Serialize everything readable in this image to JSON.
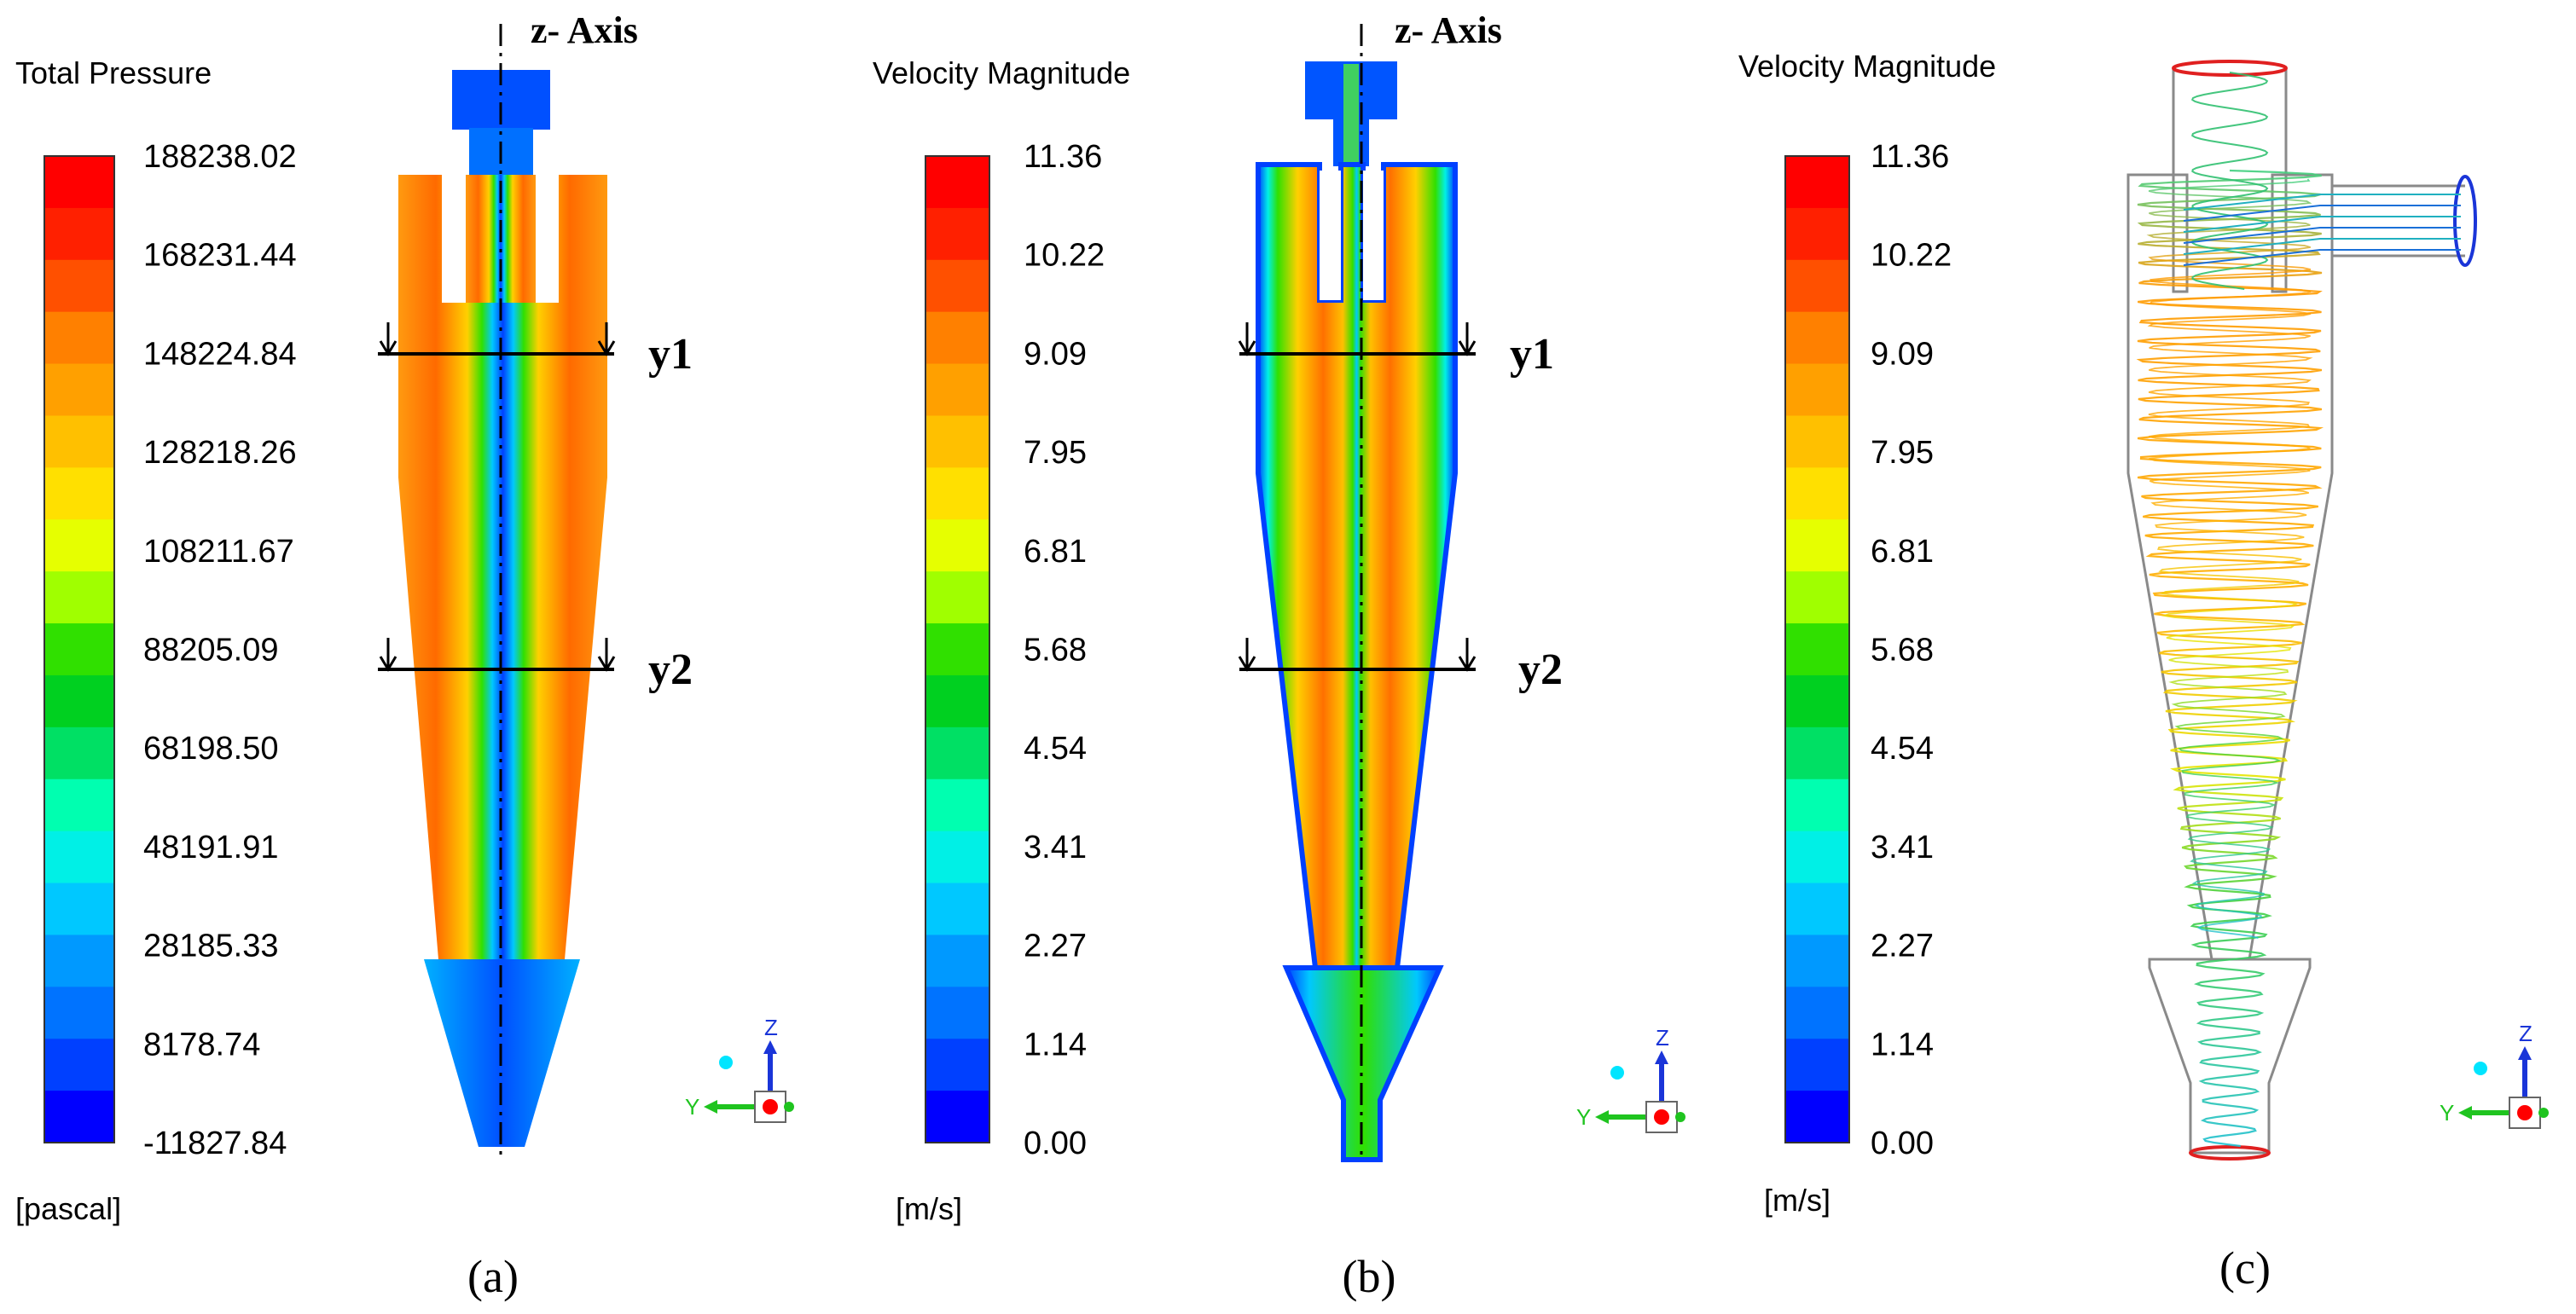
{
  "colors": {
    "scale": [
      "#0000ff",
      "#0040ff",
      "#0073ff",
      "#0099ff",
      "#00c8ff",
      "#00f0e6",
      "#00ffb0",
      "#00e064",
      "#00d020",
      "#30e000",
      "#a0ff00",
      "#e6ff00",
      "#ffe000",
      "#ffc000",
      "#ffa000",
      "#ff8000",
      "#ff5000",
      "#ff2000",
      "#ff0000"
    ],
    "axis_line": "#000000",
    "triad_z": "#1a35d8",
    "triad_y": "#1fc41f",
    "triad_dot": "#ff0000",
    "triad_cyan": "#00e5ff"
  },
  "panels": [
    {
      "id": "a",
      "caption": "(a)",
      "legend_title": "Total Pressure",
      "legend_unit": "[pascal]",
      "tick_labels": [
        "188238.02",
        "168231.44",
        "148224.84",
        "128218.26",
        "108211.67",
        "88205.09",
        "68198.50",
        "48191.91",
        "28185.33",
        "8178.74",
        "-11827.84"
      ],
      "axis_label": "z- Axis",
      "section_labels": [
        "y1",
        "y2"
      ]
    },
    {
      "id": "b",
      "caption": "(b)",
      "legend_title": "Velocity Magnitude",
      "legend_unit": "[m/s]",
      "tick_labels": [
        "11.36",
        "10.22",
        "9.09",
        "7.95",
        "6.81",
        "5.68",
        "4.54",
        "3.41",
        "2.27",
        "1.14",
        "0.00"
      ],
      "axis_label": "z- Axis",
      "section_labels": [
        "y1",
        "y2"
      ]
    },
    {
      "id": "c",
      "caption": "(c)",
      "legend_title": "Velocity Magnitude",
      "legend_unit": "[m/s]",
      "tick_labels": [
        "11.36",
        "10.22",
        "9.09",
        "7.95",
        "6.81",
        "5.68",
        "4.54",
        "3.41",
        "2.27",
        "1.14",
        "0.00"
      ]
    }
  ],
  "triad_labels": {
    "z": "Z",
    "y": "Y"
  }
}
